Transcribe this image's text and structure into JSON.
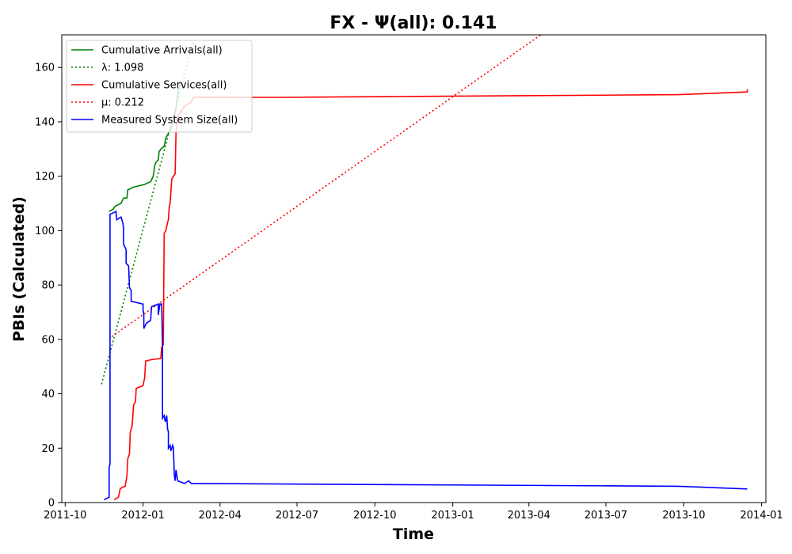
{
  "chart_data": {
    "type": "line",
    "title": "FX -  Ψ(all): 0.141",
    "xlabel": "Time",
    "ylabel": "PBIs (Calculated)",
    "xlim": [
      "2011-09-27",
      "2014-01-06"
    ],
    "ylim": [
      0,
      172
    ],
    "x_ticks": [
      "2011-10",
      "2012-01",
      "2012-04",
      "2012-07",
      "2012-10",
      "2013-01",
      "2013-04",
      "2013-07",
      "2013-10",
      "2014-01"
    ],
    "y_ticks": [
      0,
      20,
      40,
      60,
      80,
      100,
      120,
      140,
      160
    ],
    "grid": false,
    "legend_placement": "top-left",
    "series": [
      {
        "name": "Cumulative Arrivals(all)",
        "style": "solid",
        "color": "#008000",
        "points": [
          [
            "2011-11-22",
            107
          ],
          [
            "2011-11-27",
            108
          ],
          [
            "2011-11-29",
            109
          ],
          [
            "2011-12-06",
            110
          ],
          [
            "2011-12-09",
            112
          ],
          [
            "2011-12-13",
            112
          ],
          [
            "2011-12-14",
            115
          ],
          [
            "2011-12-21",
            116
          ],
          [
            "2012-01-03",
            117
          ],
          [
            "2012-01-10",
            118
          ],
          [
            "2012-01-13",
            120
          ],
          [
            "2012-01-15",
            124
          ],
          [
            "2012-01-16",
            125
          ],
          [
            "2012-01-19",
            126
          ],
          [
            "2012-01-20",
            129
          ],
          [
            "2012-01-22",
            130
          ],
          [
            "2012-01-26",
            131
          ],
          [
            "2012-01-28",
            134
          ],
          [
            "2012-02-02",
            137
          ],
          [
            "2012-02-06",
            140
          ],
          [
            "2012-02-09",
            145
          ],
          [
            "2012-02-11",
            150
          ],
          [
            "2012-02-13",
            153
          ],
          [
            "2012-02-15",
            155
          ]
        ]
      },
      {
        "name": "λ: 1.098",
        "style": "dotted",
        "color": "#008000",
        "points": [
          [
            "2011-11-13",
            43.5
          ],
          [
            "2012-03-01",
            170
          ]
        ]
      },
      {
        "name": "Cumulative Services(all)",
        "style": "solid",
        "color": "#ff0000",
        "points": [
          [
            "2011-11-28",
            1
          ],
          [
            "2011-12-03",
            2
          ],
          [
            "2011-12-05",
            5
          ],
          [
            "2011-12-07",
            5.5
          ],
          [
            "2011-12-11",
            6
          ],
          [
            "2011-12-13",
            10
          ],
          [
            "2011-12-14",
            16
          ],
          [
            "2011-12-16",
            18
          ],
          [
            "2011-12-17",
            26
          ],
          [
            "2011-12-19",
            28
          ],
          [
            "2011-12-21",
            36
          ],
          [
            "2011-12-23",
            37
          ],
          [
            "2011-12-24",
            42
          ],
          [
            "2012-01-01",
            43
          ],
          [
            "2012-01-03",
            46
          ],
          [
            "2012-01-04",
            52
          ],
          [
            "2012-01-10",
            52.5
          ],
          [
            "2012-01-22",
            53
          ],
          [
            "2012-01-23",
            57
          ],
          [
            "2012-01-25",
            58
          ],
          [
            "2012-01-26",
            99
          ],
          [
            "2012-01-28",
            100
          ],
          [
            "2012-01-30",
            103
          ],
          [
            "2012-01-31",
            104
          ],
          [
            "2012-02-01",
            109
          ],
          [
            "2012-02-02",
            110
          ],
          [
            "2012-02-04",
            119
          ],
          [
            "2012-02-06",
            120
          ],
          [
            "2012-02-08",
            121
          ],
          [
            "2012-02-09",
            136
          ],
          [
            "2012-02-11",
            142
          ],
          [
            "2012-02-15",
            144
          ],
          [
            "2012-02-20",
            146
          ],
          [
            "2012-02-26",
            147
          ],
          [
            "2012-03-01",
            149
          ],
          [
            "2012-06-15",
            149
          ],
          [
            "2013-09-25",
            150
          ],
          [
            "2013-12-15",
            151
          ],
          [
            "2013-12-15",
            152
          ]
        ]
      },
      {
        "name": "μ: 0.212",
        "style": "dotted",
        "color": "#ff0000",
        "points": [
          [
            "2011-11-25",
            61
          ],
          [
            "2013-04-15",
            172
          ]
        ]
      },
      {
        "name": "Measured System Size(all)",
        "style": "solid",
        "color": "#0000ff",
        "points": [
          [
            "2011-11-16",
            1
          ],
          [
            "2011-11-22",
            2
          ],
          [
            "2011-11-22",
            13
          ],
          [
            "2011-11-23",
            14
          ],
          [
            "2011-11-23",
            106
          ],
          [
            "2011-11-30",
            107
          ],
          [
            "2011-12-01",
            104
          ],
          [
            "2011-12-06",
            105
          ],
          [
            "2011-12-08",
            103
          ],
          [
            "2011-12-09",
            101
          ],
          [
            "2011-12-09",
            95
          ],
          [
            "2011-12-12",
            93
          ],
          [
            "2011-12-12",
            88
          ],
          [
            "2011-12-15",
            87
          ],
          [
            "2011-12-16",
            79
          ],
          [
            "2011-12-18",
            78
          ],
          [
            "2011-12-18",
            74
          ],
          [
            "2012-01-01",
            73
          ],
          [
            "2012-01-01",
            71
          ],
          [
            "2012-01-02",
            69
          ],
          [
            "2012-01-02",
            64
          ],
          [
            "2012-01-05",
            66
          ],
          [
            "2012-01-10",
            67
          ],
          [
            "2012-01-11",
            72
          ],
          [
            "2012-01-19",
            73
          ],
          [
            "2012-01-19",
            69
          ],
          [
            "2012-01-21",
            73
          ],
          [
            "2012-01-23",
            73
          ],
          [
            "2012-01-24",
            58
          ],
          [
            "2012-01-24",
            31
          ],
          [
            "2012-01-26",
            32
          ],
          [
            "2012-01-27",
            30
          ],
          [
            "2012-01-28",
            30
          ],
          [
            "2012-01-29",
            32
          ],
          [
            "2012-01-30",
            27
          ],
          [
            "2012-01-31",
            26
          ],
          [
            "2012-01-31",
            20
          ],
          [
            "2012-02-02",
            21
          ],
          [
            "2012-02-03",
            19
          ],
          [
            "2012-02-05",
            21
          ],
          [
            "2012-02-06",
            20
          ],
          [
            "2012-02-07",
            10
          ],
          [
            "2012-02-08",
            8
          ],
          [
            "2012-02-09",
            12
          ],
          [
            "2012-02-11",
            8
          ],
          [
            "2012-02-19",
            7
          ],
          [
            "2012-02-24",
            8
          ],
          [
            "2012-02-27",
            7
          ],
          [
            "2012-03-01",
            7
          ],
          [
            "2013-09-25",
            6
          ],
          [
            "2013-12-15",
            5
          ]
        ]
      }
    ]
  }
}
